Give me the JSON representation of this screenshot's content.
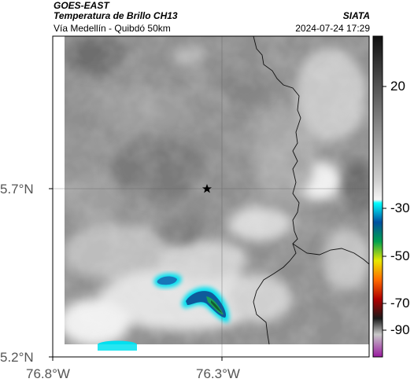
{
  "header": {
    "satellite": "GOES-EAST",
    "product": "Temperatura de Brillo CH13",
    "region": "Vía Medellín - Quibdó 50km",
    "organization": "SIATA",
    "timestamp": "2024-07-24 17:29"
  },
  "map": {
    "lat_ticks": [
      "5.7°N",
      "5.2°N"
    ],
    "lon_ticks": [
      "76.8°W",
      "76.3°W"
    ],
    "marker_icon": "star-icon"
  },
  "colorbar": {
    "tick_labels": [
      "20",
      "-30",
      "-50",
      "-70",
      "-90"
    ],
    "stops": [
      {
        "v": 1.0,
        "c": "#111111"
      },
      {
        "v": 0.55,
        "c": "#cfcfcf"
      },
      {
        "v": 0.49,
        "c": "#f5f5f5"
      },
      {
        "v": 0.48,
        "c": "#00ffff"
      },
      {
        "v": 0.42,
        "c": "#0050a0"
      },
      {
        "v": 0.36,
        "c": "#00a050"
      },
      {
        "v": 0.3,
        "c": "#e8e800"
      },
      {
        "v": 0.24,
        "c": "#ff6a00"
      },
      {
        "v": 0.18,
        "c": "#b00000"
      },
      {
        "v": 0.12,
        "c": "#1a1a1a"
      },
      {
        "v": 0.07,
        "c": "#c8c8c8"
      },
      {
        "v": 0.0,
        "c": "#9a1aa0"
      }
    ]
  }
}
